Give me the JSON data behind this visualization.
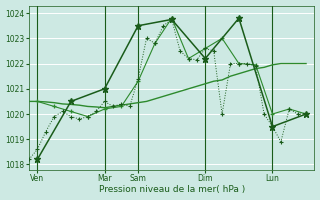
{
  "background_color": "#cde9e3",
  "grid_color": "#ffffff",
  "text_color": "#1a5c1a",
  "line_dark": "#1a5c1a",
  "line_medium": "#2d8a2d",
  "xlabel": "Pression niveau de la mer( hPa )",
  "ylim": [
    1017.8,
    1024.3
  ],
  "yticks": [
    1018,
    1019,
    1020,
    1021,
    1022,
    1023,
    1024
  ],
  "xlim": [
    0,
    34
  ],
  "xtick_positions": [
    1,
    9,
    13,
    21,
    29
  ],
  "xtick_labels": [
    "Ven",
    "Mar",
    "Sam",
    "Dim",
    "Lun"
  ],
  "vline_positions": [
    1,
    9,
    13,
    21,
    29
  ],
  "n": 34,
  "s1_x": [
    0,
    1,
    2,
    3,
    4,
    5,
    6,
    7,
    8,
    9,
    10,
    11,
    12,
    13,
    14,
    15,
    16,
    17,
    18,
    19,
    20,
    21,
    22,
    23,
    24,
    25,
    26,
    27,
    28,
    29,
    30,
    31,
    32,
    33
  ],
  "s1_y": [
    1018.2,
    1018.6,
    1019.3,
    1019.9,
    1020.1,
    1019.9,
    1019.8,
    1019.9,
    1020.1,
    1020.5,
    1020.3,
    1020.4,
    1020.3,
    1021.4,
    1023.0,
    1022.8,
    1023.5,
    1023.75,
    1022.5,
    1022.2,
    1022.15,
    1022.6,
    1022.5,
    1020.0,
    1022.0,
    1022.0,
    1022.0,
    1021.9,
    1020.0,
    1019.5,
    1018.9,
    1020.2,
    1020.0,
    1020.0
  ],
  "s2_x": [
    0,
    1,
    2,
    3,
    4,
    5,
    6,
    7,
    8,
    9,
    10,
    11,
    12,
    13,
    14,
    15,
    16,
    17,
    18,
    19,
    20,
    21,
    22,
    23,
    24,
    25,
    26,
    27,
    28,
    29,
    30,
    31,
    32,
    33
  ],
  "s2_y": [
    1020.5,
    1020.5,
    1020.48,
    1020.45,
    1020.4,
    1020.38,
    1020.35,
    1020.3,
    1020.28,
    1020.25,
    1020.3,
    1020.35,
    1020.4,
    1020.45,
    1020.5,
    1020.6,
    1020.7,
    1020.8,
    1020.9,
    1021.0,
    1021.1,
    1021.2,
    1021.3,
    1021.35,
    1021.5,
    1021.6,
    1021.7,
    1021.8,
    1021.85,
    1021.95,
    1022.0,
    1022.0,
    1022.0,
    1022.0
  ],
  "s3_x": [
    1,
    3,
    5,
    7,
    9,
    11,
    13,
    15,
    17,
    19,
    21,
    23,
    25,
    27,
    29,
    31,
    33
  ],
  "s3_y": [
    1020.5,
    1020.3,
    1020.1,
    1019.9,
    1020.2,
    1020.3,
    1021.3,
    1022.8,
    1023.8,
    1022.2,
    1022.6,
    1023.0,
    1022.0,
    1021.95,
    1020.0,
    1020.2,
    1020.0
  ],
  "s4_x": [
    1,
    5,
    9,
    13,
    17,
    21,
    25,
    29,
    33
  ],
  "s4_y": [
    1018.2,
    1020.5,
    1021.0,
    1023.5,
    1023.75,
    1022.2,
    1023.8,
    1019.5,
    1020.0
  ]
}
